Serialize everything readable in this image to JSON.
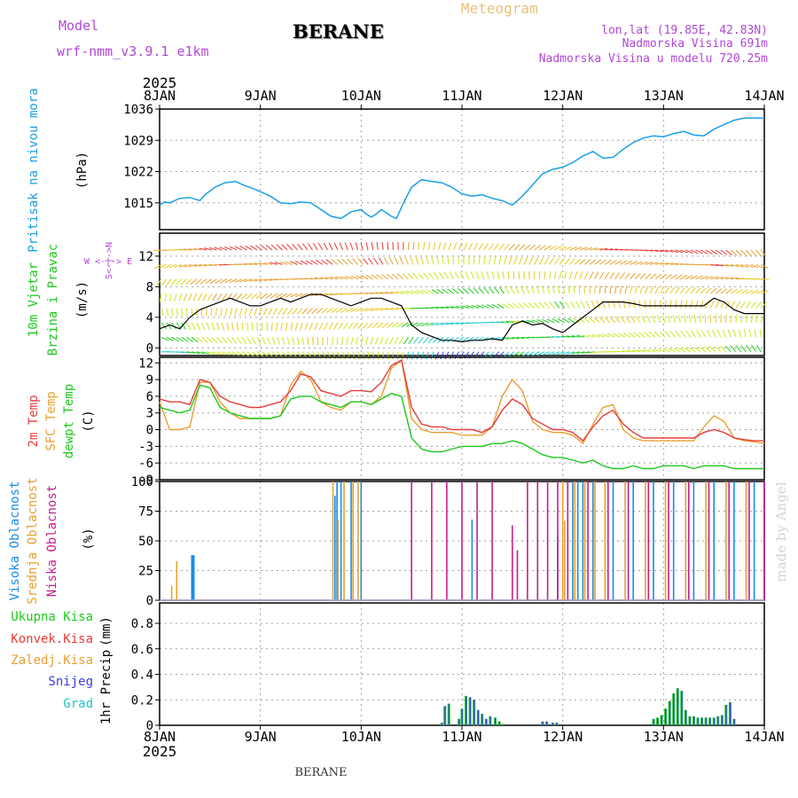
{
  "header": {
    "model_label": "Model",
    "model_name": "wrf-nmm_v3.9.1 e1km",
    "station": "BERANE",
    "chart_kind": "Meteogram",
    "lonlat": "lon,lat (19.85E, 42.83N)",
    "altitude": "Nadmorska Visina 691m",
    "model_altitude": "Nadmorska Visina u modelu 720.25m",
    "footer_station": "BERANE",
    "credit": "made by Angel"
  },
  "colors": {
    "pressure": "#1a9fe6",
    "wind_speed": "#000000",
    "t2m": "#e83a3a",
    "sfc": "#e8a030",
    "dewpt": "#1ec81e",
    "high_cloud": "#1a8ce6",
    "mid_cloud": "#e8a030",
    "low_cloud": "#c81e8c",
    "total_precip": "#1ec81e",
    "conv_precip": "#e83a3a",
    "snow": "#3a3ae8",
    "grid": "#a0a0a0",
    "header_purple": "#b048d8",
    "header_orange": "#e8c080"
  },
  "chart_data": [
    {
      "type": "line",
      "name": "pressure",
      "ylabel": [
        "Pritisak na nivou mora",
        "(hPa)"
      ],
      "ylim": [
        1009,
        1036
      ],
      "yticks": [
        1015,
        1022,
        1029,
        1036
      ],
      "x_start_label": "2025",
      "x_ticks": [
        "8JAN",
        "9JAN",
        "10JAN",
        "11JAN",
        "12JAN",
        "13JAN",
        "14JAN"
      ],
      "x": [
        0,
        0.05,
        0.1,
        0.2,
        0.3,
        0.4,
        0.45,
        0.55,
        0.65,
        0.75,
        0.85,
        0.95,
        1.0,
        1.1,
        1.2,
        1.3,
        1.4,
        1.5,
        1.6,
        1.7,
        1.8,
        1.9,
        2.0,
        2.05,
        2.1,
        2.15,
        2.2,
        2.3,
        2.35,
        2.42,
        2.5,
        2.6,
        2.7,
        2.8,
        2.9,
        3.0,
        3.1,
        3.2,
        3.3,
        3.4,
        3.5,
        3.6,
        3.7,
        3.8,
        3.9,
        4.0,
        4.1,
        4.2,
        4.3,
        4.4,
        4.5,
        4.6,
        4.7,
        4.8,
        4.9,
        5.0,
        5.1,
        5.2,
        5.3,
        5.4,
        5.5,
        5.6,
        5.7,
        5.8,
        5.9,
        6.0
      ],
      "series": [
        {
          "values": [
            1014.5,
            1015.2,
            1015.0,
            1016.0,
            1016.2,
            1015.5,
            1016.8,
            1018.5,
            1019.5,
            1019.8,
            1018.8,
            1018.0,
            1017.5,
            1016.5,
            1015.0,
            1014.8,
            1015.2,
            1015.0,
            1013.5,
            1012.0,
            1011.5,
            1013.0,
            1013.5,
            1012.5,
            1011.8,
            1012.5,
            1013.5,
            1012.0,
            1011.5,
            1015.0,
            1018.5,
            1020.2,
            1019.8,
            1019.5,
            1018.5,
            1017.0,
            1016.5,
            1016.8,
            1016.0,
            1015.5,
            1014.5,
            1016.5,
            1019.0,
            1021.5,
            1022.5,
            1023.0,
            1024.0,
            1025.5,
            1026.5,
            1025.0,
            1025.2,
            1027.0,
            1028.5,
            1029.5,
            1030.0,
            1029.8,
            1030.5,
            1031.0,
            1030.2,
            1030.0,
            1031.5,
            1032.5,
            1033.5,
            1034.0,
            1034.0,
            1034.0
          ]
        }
      ]
    },
    {
      "type": "line",
      "name": "wind",
      "ylabel": [
        "10m Vjetar",
        "Brzina i Pravac",
        "(m/s)"
      ],
      "compass": "W <-|-> E",
      "compass_ns": "S<-|->N",
      "ylim": [
        -1,
        15
      ],
      "yticks": [
        0,
        4,
        8,
        12
      ],
      "x": [
        0,
        0.1,
        0.2,
        0.3,
        0.4,
        0.5,
        0.6,
        0.7,
        0.8,
        0.9,
        1.0,
        1.1,
        1.2,
        1.3,
        1.4,
        1.5,
        1.6,
        1.7,
        1.8,
        1.9,
        2.0,
        2.1,
        2.2,
        2.3,
        2.4,
        2.5,
        2.6,
        2.7,
        2.8,
        2.9,
        3.0,
        3.1,
        3.2,
        3.3,
        3.4,
        3.5,
        3.6,
        3.7,
        3.8,
        3.9,
        4.0,
        4.1,
        4.2,
        4.3,
        4.4,
        4.5,
        4.6,
        4.7,
        4.8,
        4.9,
        5.0,
        5.1,
        5.2,
        5.3,
        5.4,
        5.5,
        5.6,
        5.7,
        5.8,
        5.9,
        6.0
      ],
      "series": [
        {
          "values": [
            2.5,
            3.0,
            2.5,
            4.0,
            5.0,
            5.5,
            6.0,
            6.5,
            6.0,
            5.5,
            5.5,
            6.0,
            6.5,
            6.0,
            6.5,
            7.0,
            7.0,
            6.5,
            6.0,
            5.5,
            6.0,
            6.5,
            6.5,
            6.0,
            5.5,
            3.0,
            2.0,
            1.5,
            1.0,
            1.0,
            0.8,
            1.0,
            1.0,
            1.2,
            1.0,
            3.0,
            3.5,
            3.0,
            3.2,
            2.5,
            2.0,
            3.0,
            4.0,
            5.0,
            6.0,
            6.0,
            6.0,
            5.8,
            5.5,
            5.5,
            5.5,
            5.5,
            5.5,
            5.5,
            5.5,
            6.5,
            6.0,
            5.0,
            4.5,
            4.5,
            4.5
          ]
        }
      ]
    },
    {
      "type": "line",
      "name": "temperature",
      "ylabel": [
        "2m Temp",
        "SFC Temp",
        "dewpt Temp",
        "(C)"
      ],
      "ylim": [
        -9,
        13
      ],
      "yticks": [
        -9,
        -6,
        -3,
        0,
        3,
        6,
        9,
        12
      ],
      "x": [
        0,
        0.1,
        0.2,
        0.3,
        0.4,
        0.5,
        0.6,
        0.7,
        0.8,
        0.9,
        1.0,
        1.1,
        1.2,
        1.3,
        1.4,
        1.5,
        1.6,
        1.7,
        1.8,
        1.9,
        2.0,
        2.1,
        2.2,
        2.3,
        2.4,
        2.5,
        2.6,
        2.7,
        2.8,
        2.9,
        3.0,
        3.1,
        3.2,
        3.3,
        3.4,
        3.5,
        3.6,
        3.7,
        3.8,
        3.9,
        4.0,
        4.1,
        4.2,
        4.3,
        4.4,
        4.5,
        4.6,
        4.7,
        4.8,
        4.9,
        5.0,
        5.1,
        5.2,
        5.3,
        5.4,
        5.5,
        5.6,
        5.7,
        5.8,
        5.9,
        6.0
      ],
      "series": [
        {
          "values": [
            5.5,
            5.0,
            5.0,
            4.5,
            9.0,
            8.5,
            6.0,
            5.0,
            4.5,
            4.0,
            4.0,
            4.5,
            5.0,
            7.0,
            10.0,
            9.5,
            7.0,
            6.5,
            6.0,
            7.0,
            7.0,
            6.8,
            8.5,
            11.5,
            12.5,
            4.0,
            1.0,
            0.5,
            0.5,
            0.0,
            0.0,
            0.0,
            -0.5,
            0.5,
            3.5,
            5.5,
            4.5,
            2.0,
            1.0,
            0.0,
            0.0,
            -0.5,
            -2.0,
            0.5,
            2.5,
            3.5,
            1.0,
            -0.5,
            -1.5,
            -1.5,
            -1.5,
            -1.5,
            -1.5,
            -1.5,
            -0.5,
            0.0,
            -0.5,
            -1.5,
            -1.8,
            -2.0,
            -2.0
          ]
        },
        {
          "values": [
            5.0,
            0.0,
            0.0,
            0.5,
            8.5,
            8.5,
            5.0,
            3.0,
            2.0,
            2.0,
            2.0,
            2.0,
            2.5,
            8.0,
            10.5,
            9.0,
            5.0,
            4.0,
            3.5,
            5.0,
            5.0,
            4.5,
            6.0,
            11.0,
            12.5,
            2.0,
            0.0,
            -0.5,
            -0.5,
            -0.5,
            -1.0,
            -1.0,
            -1.0,
            0.5,
            6.0,
            9.0,
            7.0,
            1.5,
            0.0,
            -0.5,
            -0.5,
            -1.0,
            -2.5,
            1.0,
            4.0,
            4.5,
            0.0,
            -1.5,
            -2.0,
            -2.0,
            -2.0,
            -2.0,
            -2.0,
            -2.0,
            0.5,
            2.5,
            1.5,
            -1.5,
            -2.0,
            -2.2,
            -2.5
          ]
        },
        {
          "values": [
            4.0,
            3.5,
            3.0,
            3.5,
            8.0,
            7.5,
            4.0,
            3.0,
            2.5,
            2.0,
            2.0,
            2.0,
            2.5,
            5.5,
            6.0,
            6.0,
            5.0,
            4.5,
            4.0,
            5.0,
            5.0,
            4.5,
            5.5,
            6.5,
            6.0,
            -1.5,
            -3.5,
            -4.0,
            -4.0,
            -3.5,
            -3.0,
            -3.0,
            -3.0,
            -2.5,
            -2.5,
            -2.0,
            -2.5,
            -3.5,
            -4.5,
            -5.0,
            -5.0,
            -5.5,
            -6.0,
            -5.5,
            -6.5,
            -7.0,
            -7.0,
            -6.5,
            -7.0,
            -7.0,
            -6.5,
            -6.5,
            -6.5,
            -7.0,
            -6.5,
            -6.5,
            -6.5,
            -7.0,
            -7.0,
            -7.0,
            -7.0
          ]
        }
      ]
    },
    {
      "type": "bar",
      "name": "cloud",
      "ylabel": [
        "Visoka Oblacnost",
        "Srednja Oblacnost",
        "Niska Oblacnost",
        "(%)"
      ],
      "ylim": [
        0,
        100
      ],
      "yticks": [
        0,
        25,
        50,
        75,
        100
      ],
      "series": [
        {
          "name": "high",
          "x": [
            0.33,
            1.74,
            1.76,
            1.8,
            1.9,
            2.0,
            3.1,
            3.95,
            4.05,
            4.1,
            4.15,
            4.2,
            4.3,
            4.5,
            4.7,
            4.9,
            5.1,
            5.3,
            5.5,
            5.7,
            5.9
          ],
          "values": [
            38,
            88,
            100,
            100,
            100,
            100,
            68,
            55,
            57,
            100,
            100,
            100,
            100,
            100,
            100,
            100,
            100,
            100,
            100,
            100,
            100
          ]
        },
        {
          "name": "mid",
          "x": [
            0.12,
            0.17,
            1.72,
            1.77,
            1.83,
            1.92,
            1.97,
            4.0,
            4.02,
            4.12,
            4.22,
            4.32,
            4.42,
            4.62,
            4.82,
            5.02,
            5.22,
            5.42,
            5.62,
            5.82
          ],
          "values": [
            12,
            33,
            100,
            68,
            100,
            100,
            100,
            100,
            67,
            100,
            100,
            100,
            100,
            100,
            100,
            100,
            100,
            100,
            100,
            100
          ]
        },
        {
          "name": "low",
          "x": [
            2.5,
            2.7,
            2.85,
            3.0,
            3.15,
            3.3,
            3.5,
            3.55,
            3.65,
            3.75,
            3.85,
            3.95,
            4.05,
            4.25,
            4.45,
            4.65,
            4.85,
            5.05,
            5.25,
            5.45,
            5.65,
            5.85,
            6.0
          ],
          "values": [
            100,
            100,
            100,
            100,
            100,
            100,
            63,
            42,
            100,
            100,
            100,
            100,
            100,
            100,
            100,
            100,
            100,
            100,
            100,
            100,
            100,
            100,
            100
          ]
        }
      ]
    },
    {
      "type": "bar",
      "name": "precip",
      "ylabel": [
        "1hr Precip",
        "(mm)"
      ],
      "legend": [
        "Ukupna Kisa",
        "Konvek.Kisa",
        "Zaledj.Kisa",
        "Snijeg",
        "Grad"
      ],
      "legend_colors": [
        "#1ec81e",
        "#e83a3a",
        "#e8a030",
        "#3a3ae8",
        "#1ec8c8"
      ],
      "ylim": [
        0,
        0.96
      ],
      "yticks": [
        0,
        0.2,
        0.4,
        0.6,
        0.8
      ],
      "x_start_label": "2025",
      "x_ticks": [
        "8JAN",
        "9JAN",
        "10JAN",
        "11JAN",
        "12JAN",
        "13JAN",
        "14JAN"
      ],
      "x": [
        2.8,
        2.83,
        2.87,
        2.97,
        3.0,
        3.04,
        3.08,
        3.12,
        3.16,
        3.2,
        3.24,
        3.28,
        3.33,
        3.37,
        3.41,
        3.8,
        3.84,
        3.9,
        3.94,
        4.9,
        4.94,
        4.98,
        5.02,
        5.06,
        5.1,
        5.14,
        5.18,
        5.22,
        5.26,
        5.3,
        5.34,
        5.38,
        5.42,
        5.46,
        5.5,
        5.54,
        5.58,
        5.62,
        5.66,
        5.7
      ],
      "series": [
        {
          "name": "rain",
          "values": [
            0.02,
            0.15,
            0.17,
            0.05,
            0.13,
            0.23,
            0.22,
            0.2,
            0.12,
            0.09,
            0.05,
            0.07,
            0.06,
            0.03,
            0.01,
            0.03,
            0.03,
            0.02,
            0.02,
            0.05,
            0.06,
            0.08,
            0.13,
            0.19,
            0.25,
            0.29,
            0.27,
            0.12,
            0.07,
            0.07,
            0.06,
            0.06,
            0.06,
            0.06,
            0.06,
            0.07,
            0.08,
            0.16,
            0.18,
            0.05
          ]
        }
      ]
    }
  ]
}
